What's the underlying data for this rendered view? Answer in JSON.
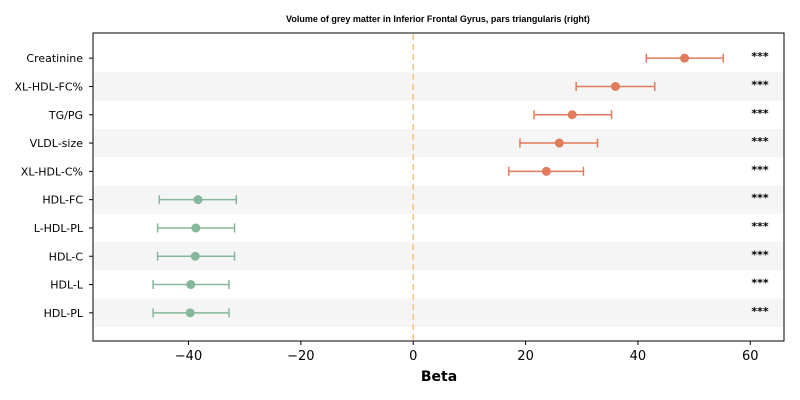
{
  "chart_data": {
    "type": "forest",
    "title": "Volume of grey matter in Inferior Frontal Gyrus, pars triangularis (right)",
    "xlabel": "Beta",
    "xlim": [
      -57,
      66
    ],
    "xticks": [
      -40,
      -20,
      0,
      20,
      40,
      60
    ],
    "xtick_labels": [
      "−40",
      "−20",
      "0",
      "20",
      "40",
      "60"
    ],
    "reference_line": 0,
    "colors": {
      "positive": "#e07b5b",
      "negative": "#86b79b",
      "reference": "#f5c27a",
      "band": "#f5f5f5"
    },
    "rows": [
      {
        "label": "Creatinine",
        "beta": 48.3,
        "lo": 41.5,
        "hi": 55.2,
        "sig": "***"
      },
      {
        "label": "XL-HDL-FC%",
        "beta": 36.0,
        "lo": 29.0,
        "hi": 43.0,
        "sig": "***"
      },
      {
        "label": "TG/PG",
        "beta": 28.3,
        "lo": 21.5,
        "hi": 35.3,
        "sig": "***"
      },
      {
        "label": "VLDL-size",
        "beta": 26.0,
        "lo": 19.0,
        "hi": 32.8,
        "sig": "***"
      },
      {
        "label": "XL-HDL-C%",
        "beta": 23.7,
        "lo": 17.0,
        "hi": 30.3,
        "sig": "***"
      },
      {
        "label": "HDL-FC",
        "beta": -38.3,
        "lo": -45.2,
        "hi": -31.5,
        "sig": "***"
      },
      {
        "label": "L-HDL-PL",
        "beta": -38.7,
        "lo": -45.5,
        "hi": -31.8,
        "sig": "***"
      },
      {
        "label": "HDL-C",
        "beta": -38.8,
        "lo": -45.5,
        "hi": -31.8,
        "sig": "***"
      },
      {
        "label": "HDL-L",
        "beta": -39.6,
        "lo": -46.3,
        "hi": -32.8,
        "sig": "***"
      },
      {
        "label": "HDL-PL",
        "beta": -39.7,
        "lo": -46.3,
        "hi": -32.8,
        "sig": "***"
      }
    ]
  }
}
